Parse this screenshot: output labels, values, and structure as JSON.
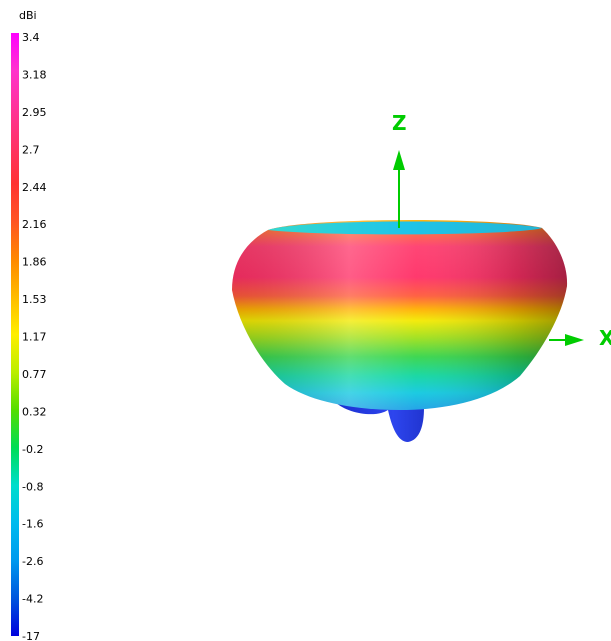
{
  "chart_data": {
    "type": "3d-radiation-pattern",
    "colorbar": {
      "unit": "dBi",
      "tick_labels": [
        "3.4",
        "3.18",
        "2.95",
        "2.7",
        "2.44",
        "2.16",
        "1.86",
        "1.53",
        "1.17",
        "0.77",
        "0.32",
        "-0.2",
        "-0.8",
        "-1.6",
        "-2.6",
        "-4.2",
        "-17"
      ],
      "color_stops": [
        "#ff00ff",
        "#ff33cc",
        "#ff3399",
        "#ff3366",
        "#ff3333",
        "#ff5522",
        "#ff8800",
        "#ffbb00",
        "#ffee00",
        "#bbee00",
        "#55dd00",
        "#00dd55",
        "#00ddcc",
        "#00bbee",
        "#0099ee",
        "#0055dd",
        "#0000dd"
      ]
    },
    "axes": {
      "z_label": "Z",
      "x_label": "X",
      "color": "#00cc00"
    }
  }
}
